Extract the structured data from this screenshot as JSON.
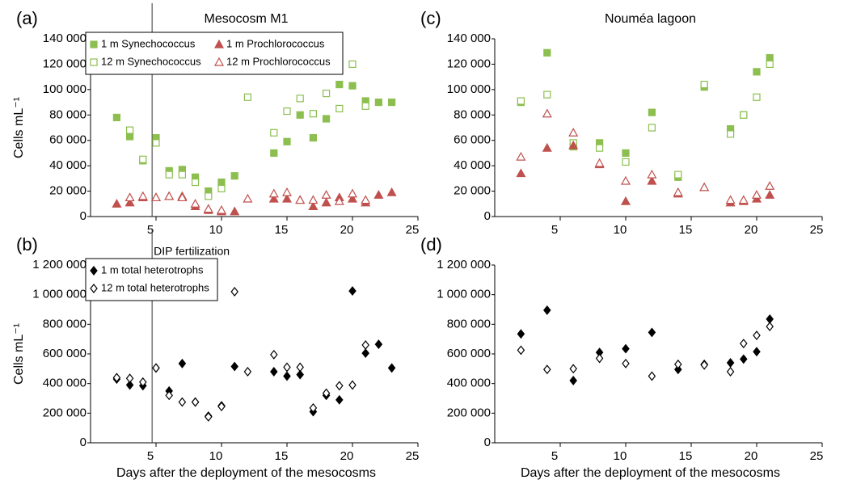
{
  "chart_data": [
    {
      "type": "scatter",
      "label": "(a)",
      "title": "Mesocosm M1",
      "ylabel": "Cells mL⁻¹",
      "xlim": [
        0,
        25
      ],
      "xticks": [
        5,
        10,
        15,
        20,
        25
      ],
      "ylim": [
        0,
        140000
      ],
      "yticks": [
        0,
        {
          "value": 20000,
          "label": "20 000"
        },
        {
          "value": 40000,
          "label": "40 000"
        },
        {
          "value": 60000,
          "label": "60 000"
        },
        {
          "value": 80000,
          "label": "80 000"
        },
        {
          "value": 100000,
          "label": "100 000"
        },
        {
          "value": 120000,
          "label": "120 000"
        },
        {
          "value": 140000,
          "label": "140 000"
        }
      ],
      "vline": 4.7,
      "legend": "upper left",
      "legend_columns": 2,
      "series": [
        {
          "name": "1 m Synechococcus",
          "color": "#8cbf4f",
          "marker": "square",
          "filled": true,
          "x": [
            2,
            3,
            4,
            5,
            6,
            7,
            8,
            9,
            10,
            11,
            14,
            15,
            16,
            17,
            18,
            19,
            20,
            21,
            22,
            23
          ],
          "values": [
            78000,
            63000,
            44000,
            62000,
            36000,
            37000,
            31000,
            20000,
            27000,
            32000,
            50000,
            59000,
            80000,
            62000,
            77000,
            104000,
            103000,
            91000,
            90000,
            90000
          ]
        },
        {
          "name": "12 m Synechococcus",
          "color": "#8cbf4f",
          "marker": "square",
          "filled": false,
          "x": [
            3,
            4,
            5,
            6,
            7,
            8,
            9,
            10,
            12,
            14,
            15,
            16,
            17,
            18,
            19,
            20,
            21
          ],
          "values": [
            68000,
            45000,
            58000,
            33000,
            33000,
            27000,
            16000,
            22000,
            94000,
            66000,
            83000,
            93000,
            81000,
            97000,
            85000,
            120000,
            87000
          ]
        },
        {
          "name": "1 m Prochlorococcus",
          "color": "#c0504d",
          "marker": "triangle",
          "filled": true,
          "x": [
            2,
            3,
            4,
            5,
            6,
            7,
            8,
            9,
            10,
            11,
            14,
            15,
            16,
            17,
            18,
            19,
            20,
            21,
            22,
            23
          ],
          "values": [
            10000,
            11000,
            15000,
            15000,
            16000,
            16000,
            8000,
            5000,
            4000,
            4000,
            14000,
            14000,
            13000,
            8000,
            11000,
            15000,
            14000,
            11000,
            17000,
            19000
          ]
        },
        {
          "name": "12 m Prochlorococcus",
          "color": "#c0504d",
          "marker": "triangle",
          "filled": false,
          "x": [
            3,
            4,
            5,
            6,
            7,
            8,
            9,
            10,
            12,
            14,
            15,
            16,
            17,
            18,
            19,
            20,
            21
          ],
          "values": [
            15000,
            16000,
            15000,
            16000,
            15000,
            10000,
            6000,
            5000,
            14000,
            18000,
            19000,
            13000,
            13000,
            17000,
            12000,
            18000,
            13000
          ]
        }
      ]
    },
    {
      "type": "scatter",
      "label": "(b)",
      "annotation": "DIP fertilization",
      "ylabel": "Cells mL⁻¹",
      "xlabel": "Days after the deployment of the mesocosms",
      "xlim": [
        0,
        25
      ],
      "xticks": [
        5,
        10,
        15,
        20,
        25
      ],
      "ylim": [
        0,
        1200000
      ],
      "yticks": [
        0,
        {
          "value": 200000,
          "label": "200 000"
        },
        {
          "value": 400000,
          "label": "400 000"
        },
        {
          "value": 600000,
          "label": "600 000"
        },
        {
          "value": 800000,
          "label": "800 000"
        },
        {
          "value": 1000000,
          "label": "1 000 000"
        },
        {
          "value": 1200000,
          "label": "1 200 000"
        }
      ],
      "vline": 4.7,
      "legend": "upper left",
      "legend_columns": 1,
      "series": [
        {
          "name": "1 m total heterotrophs",
          "color": "#000000",
          "marker": "diamond",
          "filled": true,
          "x": [
            2,
            3,
            4,
            5,
            6,
            7,
            8,
            9,
            10,
            11,
            14,
            15,
            16,
            17,
            18,
            19,
            20,
            21,
            22,
            23
          ],
          "values": [
            430000,
            390000,
            385000,
            505000,
            350000,
            535000,
            275000,
            180000,
            250000,
            515000,
            480000,
            450000,
            460000,
            210000,
            320000,
            290000,
            1025000,
            605000,
            665000,
            505000
          ]
        },
        {
          "name": "12 m total heterotrophs",
          "color": "#000000",
          "marker": "diamond",
          "filled": false,
          "x": [
            2,
            3,
            4,
            5,
            6,
            7,
            8,
            9,
            10,
            11,
            12,
            14,
            15,
            16,
            17,
            18,
            19,
            20,
            21
          ],
          "values": [
            440000,
            435000,
            410000,
            505000,
            320000,
            275000,
            275000,
            175000,
            245000,
            1020000,
            480000,
            595000,
            510000,
            510000,
            235000,
            335000,
            385000,
            390000,
            660000
          ]
        }
      ]
    },
    {
      "type": "scatter",
      "label": "(c)",
      "title": "Nouméa lagoon",
      "xlim": [
        0,
        25
      ],
      "xticks": [
        5,
        10,
        15,
        20,
        25
      ],
      "ylim": [
        0,
        140000
      ],
      "yticks": [
        0,
        {
          "value": 20000,
          "label": "20 000"
        },
        {
          "value": 40000,
          "label": "40 000"
        },
        {
          "value": 60000,
          "label": "60 000"
        },
        {
          "value": 80000,
          "label": "80 000"
        },
        {
          "value": 100000,
          "label": "100 000"
        },
        {
          "value": 120000,
          "label": "120 000"
        },
        {
          "value": 140000,
          "label": "140 000"
        }
      ],
      "series": [
        {
          "color": "#8cbf4f",
          "marker": "square",
          "filled": true,
          "x": [
            2,
            4,
            6,
            8,
            10,
            12,
            14,
            16,
            18,
            19,
            20,
            21
          ],
          "values": [
            90000,
            129000,
            55000,
            58000,
            50000,
            82000,
            31000,
            102000,
            69000,
            80000,
            114000,
            125000
          ]
        },
        {
          "color": "#8cbf4f",
          "marker": "square",
          "filled": false,
          "x": [
            2,
            4,
            6,
            8,
            10,
            12,
            14,
            16,
            18,
            19,
            20,
            21
          ],
          "values": [
            91000,
            96000,
            58000,
            54000,
            43000,
            70000,
            33000,
            104000,
            65000,
            80000,
            94000,
            120000
          ]
        },
        {
          "color": "#c0504d",
          "marker": "triangle",
          "filled": true,
          "x": [
            2,
            4,
            6,
            8,
            10,
            12,
            14,
            16,
            18,
            19,
            20,
            21
          ],
          "values": [
            34000,
            54000,
            56000,
            41000,
            12000,
            28000,
            18000,
            23000,
            11000,
            12000,
            14000,
            17000
          ]
        },
        {
          "color": "#c0504d",
          "marker": "triangle",
          "filled": false,
          "x": [
            2,
            4,
            6,
            8,
            10,
            12,
            14,
            16,
            18,
            19,
            20,
            21
          ],
          "values": [
            47000,
            81000,
            66000,
            42000,
            28000,
            33000,
            19000,
            23000,
            13000,
            13000,
            17000,
            24000
          ]
        }
      ]
    },
    {
      "type": "scatter",
      "label": "(d)",
      "xlabel": "Days after the deployment of the mesocosms",
      "xlim": [
        0,
        25
      ],
      "xticks": [
        5,
        10,
        15,
        20,
        25
      ],
      "ylim": [
        0,
        1200000
      ],
      "yticks": [
        0,
        {
          "value": 200000,
          "label": "200 000"
        },
        {
          "value": 400000,
          "label": "400 000"
        },
        {
          "value": 600000,
          "label": "600 000"
        },
        {
          "value": 800000,
          "label": "800 000"
        },
        {
          "value": 1000000,
          "label": "1 000 000"
        },
        {
          "value": 1200000,
          "label": "1 200 000"
        }
      ],
      "series": [
        {
          "color": "#000000",
          "marker": "diamond",
          "filled": true,
          "x": [
            2,
            4,
            6,
            8,
            10,
            12,
            14,
            16,
            18,
            19,
            20,
            21
          ],
          "values": [
            735000,
            895000,
            420000,
            610000,
            635000,
            745000,
            495000,
            530000,
            540000,
            565000,
            615000,
            835000
          ]
        },
        {
          "color": "#000000",
          "marker": "diamond",
          "filled": false,
          "x": [
            2,
            4,
            6,
            8,
            10,
            12,
            14,
            16,
            18,
            19,
            20,
            21
          ],
          "values": [
            625000,
            495000,
            500000,
            570000,
            535000,
            450000,
            530000,
            525000,
            480000,
            670000,
            725000,
            785000
          ]
        }
      ]
    }
  ]
}
